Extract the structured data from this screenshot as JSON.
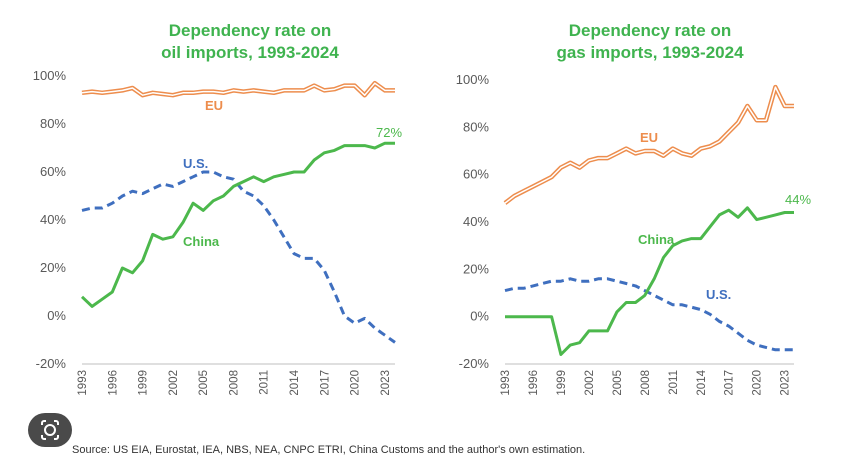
{
  "source_text": "Source: US EIA, Eurostat, IEA, NBS, NEA, CNPC ETRI, China Customs and the author's own estimation.",
  "lens_icon": "google-lens-icon",
  "colors": {
    "eu": "#ed8d4d",
    "us": "#3f6fbf",
    "china": "#4cb84c",
    "title": "#3fb34f"
  },
  "chart_data": [
    {
      "type": "line",
      "title_line1": "Dependency rate on",
      "title_line2": "oil imports, 1993-2024",
      "xlabel": "",
      "ylabel": "",
      "ylim": [
        -20,
        100
      ],
      "yticks": [
        -20,
        0,
        20,
        40,
        60,
        80,
        100
      ],
      "ytick_labels": [
        "-20%",
        "0%",
        "20%",
        "40%",
        "60%",
        "80%",
        "100%"
      ],
      "xlim": [
        1993,
        2024
      ],
      "xticks": [
        "1993",
        "1996",
        "1999",
        "2002",
        "2005",
        "2008",
        "2011",
        "2014",
        "2017",
        "2020",
        "2023"
      ],
      "x": [
        1993,
        1994,
        1995,
        1996,
        1997,
        1998,
        1999,
        2000,
        2001,
        2002,
        2003,
        2004,
        2005,
        2006,
        2007,
        2008,
        2009,
        2010,
        2011,
        2012,
        2013,
        2014,
        2015,
        2016,
        2017,
        2018,
        2019,
        2020,
        2021,
        2022,
        2023,
        2024
      ],
      "series": [
        {
          "name": "EU",
          "label": "EU",
          "style": "double",
          "values": [
            93,
            93.5,
            93,
            93.5,
            94,
            95,
            92,
            93,
            92.5,
            92,
            93,
            93,
            93.5,
            93.5,
            93,
            94,
            93.5,
            94,
            93.5,
            93,
            94,
            94,
            94,
            96,
            94,
            94.5,
            96,
            96,
            92,
            97,
            94,
            94
          ]
        },
        {
          "name": "U.S.",
          "label": "U.S.",
          "style": "dashed",
          "values": [
            44,
            45,
            45,
            47,
            50,
            52,
            51,
            53,
            55,
            54,
            56,
            58,
            60,
            60,
            58,
            57,
            52,
            50,
            46,
            40,
            33,
            26,
            24,
            24,
            19,
            10,
            0,
            -3,
            -1,
            -5,
            -8,
            -11
          ]
        },
        {
          "name": "China",
          "label": "China",
          "style": "solid",
          "end_label": "72%",
          "values": [
            8,
            4,
            7,
            10,
            20,
            18,
            23,
            34,
            32,
            33,
            39,
            47,
            44,
            48,
            50,
            54,
            56,
            58,
            56,
            58,
            59,
            60,
            60,
            65,
            68,
            69,
            71,
            71,
            71,
            70,
            72,
            72
          ]
        }
      ]
    },
    {
      "type": "line",
      "title_line1": "Dependency rate on",
      "title_line2": "gas imports, 1993-2024",
      "xlabel": "",
      "ylabel": "",
      "ylim": [
        -20,
        100
      ],
      "yticks": [
        -20,
        0,
        20,
        40,
        60,
        80,
        100
      ],
      "ytick_labels": [
        "-20%",
        "0%",
        "20%",
        "40%",
        "60%",
        "80%",
        "100%"
      ],
      "xlim": [
        1993,
        2024
      ],
      "xticks": [
        "1993",
        "1996",
        "1999",
        "2002",
        "2005",
        "2008",
        "2011",
        "2014",
        "2017",
        "2020",
        "2023"
      ],
      "x": [
        1993,
        1994,
        1995,
        1996,
        1997,
        1998,
        1999,
        2000,
        2001,
        2002,
        2003,
        2004,
        2005,
        2006,
        2007,
        2008,
        2009,
        2010,
        2011,
        2012,
        2013,
        2014,
        2015,
        2016,
        2017,
        2018,
        2019,
        2020,
        2021,
        2022,
        2023,
        2024
      ],
      "series": [
        {
          "name": "EU",
          "label": "EU",
          "style": "double",
          "values": [
            48,
            51,
            53,
            55,
            57,
            59,
            63,
            65,
            63,
            66,
            67,
            67,
            69,
            71,
            69,
            70,
            70,
            68,
            71,
            69,
            68,
            71,
            72,
            74,
            78,
            82,
            89,
            83,
            83,
            97,
            89,
            89
          ]
        },
        {
          "name": "U.S.",
          "label": "U.S.",
          "style": "dashed",
          "values": [
            11,
            12,
            12,
            13,
            14,
            15,
            15,
            16,
            15,
            15,
            16,
            16,
            15,
            14,
            13,
            11,
            9,
            7,
            5,
            5,
            4,
            3,
            1,
            -2,
            -4,
            -7,
            -10,
            -12,
            -13,
            -14,
            -14,
            -14
          ]
        },
        {
          "name": "China",
          "label": "China",
          "style": "solid",
          "end_label": "44%",
          "values": [
            0,
            0,
            0,
            0,
            0,
            0,
            -16,
            -12,
            -11,
            -6,
            -6,
            -6,
            2,
            6,
            6,
            9,
            16,
            25,
            30,
            32,
            33,
            33,
            38,
            43,
            45,
            42,
            46,
            41,
            42,
            43,
            44,
            44
          ]
        }
      ]
    }
  ]
}
